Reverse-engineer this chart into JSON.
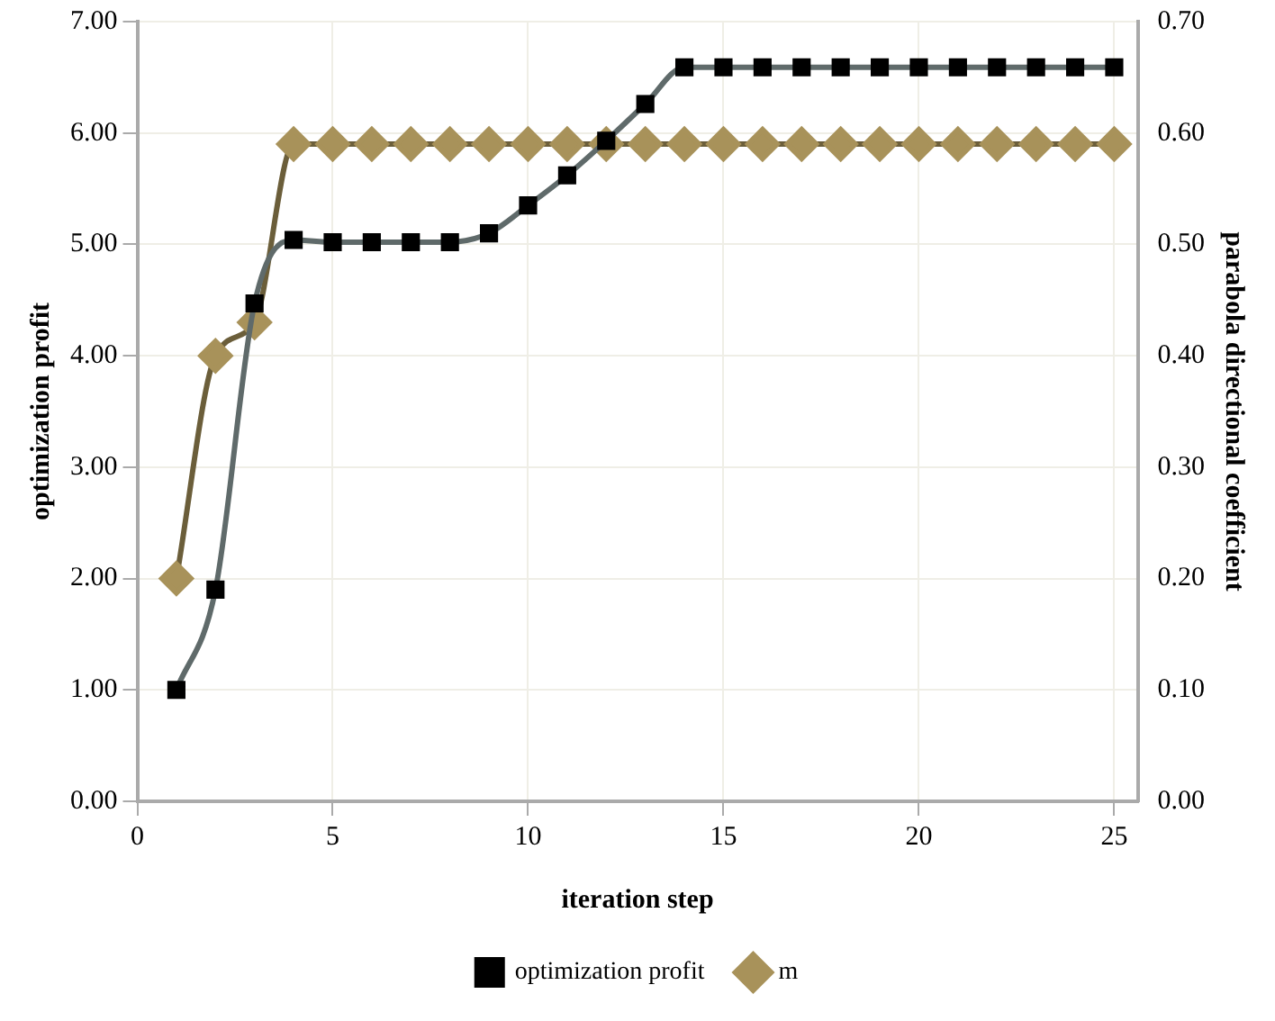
{
  "chart_data": {
    "type": "line",
    "xlabel": "iteration step",
    "ylabel": "optimization profit",
    "y2label": "parabola directional coefficient",
    "x": [
      1,
      2,
      3,
      4,
      5,
      6,
      7,
      8,
      9,
      10,
      11,
      12,
      13,
      14,
      15,
      16,
      17,
      18,
      19,
      20,
      21,
      22,
      23,
      24,
      25
    ],
    "series": [
      {
        "name": "optimization profit",
        "color": "#000000",
        "marker": "square",
        "values": [
          1.0,
          1.9,
          4.47,
          5.04,
          5.02,
          5.02,
          5.02,
          5.02,
          5.1,
          5.35,
          5.62,
          5.93,
          6.26,
          6.59,
          6.59,
          6.59,
          6.59,
          6.59,
          6.59,
          6.59,
          6.59,
          6.59,
          6.59,
          6.59,
          6.59
        ]
      },
      {
        "name": "m",
        "color": "#a8925a",
        "marker": "diamond",
        "axis": "y2",
        "values": [
          0.2,
          0.4,
          0.43,
          0.59,
          0.59,
          0.59,
          0.59,
          0.59,
          0.59,
          0.59,
          0.59,
          0.59,
          0.59,
          0.59,
          0.59,
          0.59,
          0.59,
          0.59,
          0.59,
          0.59,
          0.59,
          0.59,
          0.59,
          0.59,
          0.59
        ]
      }
    ],
    "xlim": [
      0,
      25.6
    ],
    "xticks": [
      0,
      5,
      10,
      15,
      20,
      25
    ],
    "ylim": [
      0,
      7
    ],
    "yticks": [
      {
        "value": 0,
        "label": "0.00"
      },
      {
        "value": 1,
        "label": "1.00"
      },
      {
        "value": 2,
        "label": "2.00"
      },
      {
        "value": 3,
        "label": "3.00"
      },
      {
        "value": 4,
        "label": "4.00"
      },
      {
        "value": 5,
        "label": "5.00"
      },
      {
        "value": 6,
        "label": "6.00"
      },
      {
        "value": 7,
        "label": "7.00"
      }
    ],
    "y2lim": [
      0,
      0.7
    ],
    "y2ticks": [
      {
        "value": 0,
        "label": "0.00"
      },
      {
        "value": 0.1,
        "label": "0.10"
      },
      {
        "value": 0.2,
        "label": "0.20"
      },
      {
        "value": 0.3,
        "label": "0.30"
      },
      {
        "value": 0.4,
        "label": "0.40"
      },
      {
        "value": 0.5,
        "label": "0.50"
      },
      {
        "value": 0.6,
        "label": "0.60"
      },
      {
        "value": 0.7,
        "label": "0.70"
      }
    ],
    "grid": true,
    "legend": "bottom",
    "line_style": "solid"
  }
}
